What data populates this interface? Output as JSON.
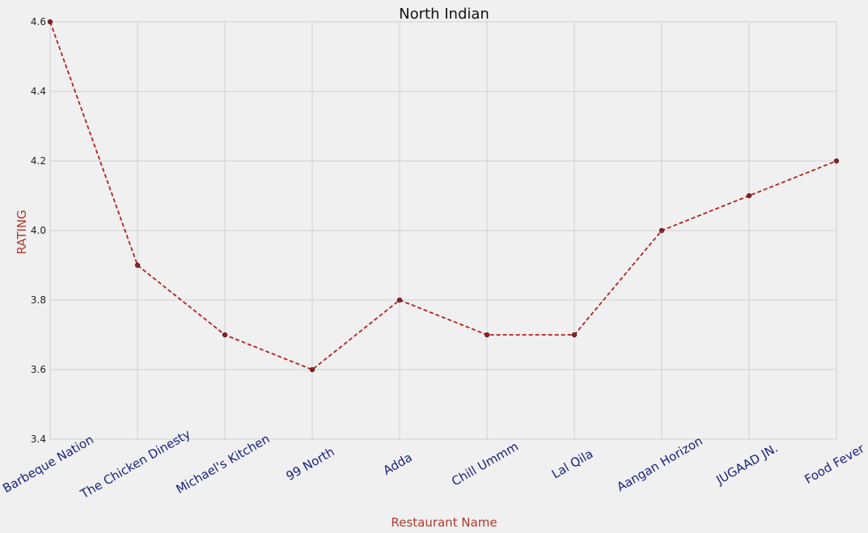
{
  "chart_data": {
    "type": "line",
    "title": "North Indian",
    "xlabel": "Restaurant Name",
    "ylabel": "RATING",
    "categories": [
      "Barbeque Nation",
      "The Chicken Dinesty",
      "Michael's Kitchen",
      "99 North",
      "Adda",
      "Chill Ummm",
      "Lal Qila",
      "Aangan Horizon",
      "JUGAAD JN.",
      "Food Fever"
    ],
    "series": [
      {
        "values": [
          4.6,
          3.9,
          3.7,
          3.6,
          3.8,
          3.7,
          3.7,
          4.0,
          4.1,
          4.2
        ]
      }
    ],
    "ylim": [
      3.4,
      4.6
    ],
    "yticks": [
      "3.4",
      "3.6",
      "3.8",
      "4.0",
      "4.2",
      "4.4",
      "4.6"
    ],
    "grid": true,
    "line_style": "dashed",
    "colors": {
      "line": "#b22222",
      "marker_fill": "#8b2323",
      "category_text": "#1a237e",
      "axis_label": "#b03a2e",
      "grid": "#cfcfcf",
      "background": "#f0f0f0"
    }
  }
}
